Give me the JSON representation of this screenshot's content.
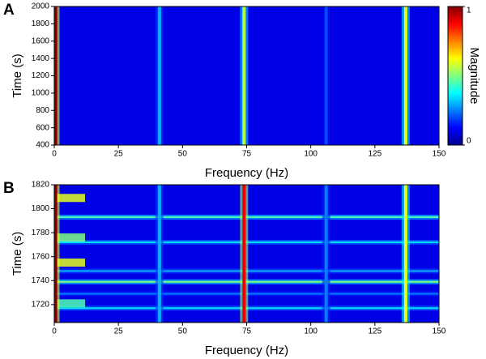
{
  "chart_data": [
    {
      "type": "heatmap",
      "panel": "A",
      "x_label": "Frequency (Hz)",
      "y_label": "Time (s)",
      "xlim": [
        0,
        150
      ],
      "xticks": [
        0,
        25,
        50,
        75,
        100,
        125,
        150
      ],
      "ylim": [
        400,
        2000
      ],
      "yticks": [
        400,
        600,
        800,
        1000,
        1200,
        1400,
        1600,
        1800,
        2000
      ],
      "background_magnitude": 0.1,
      "lines": [
        {
          "frequency": 0.5,
          "magnitude": 1
        },
        {
          "frequency": 41,
          "magnitude": 0.3
        },
        {
          "frequency": 74,
          "magnitude": 0.55
        },
        {
          "frequency": 106,
          "magnitude": 0.2
        },
        {
          "frequency": 137,
          "magnitude": 0.6
        }
      ],
      "bands": [],
      "bursts": [],
      "colorbar": {
        "label": "Magnitude",
        "clim": [
          0,
          1
        ],
        "ticks": [
          0,
          1
        ]
      }
    },
    {
      "type": "heatmap",
      "panel": "B",
      "x_label": "Frequency (Hz)",
      "y_label": "Time (s)",
      "xlim": [
        0,
        150
      ],
      "xticks": [
        0,
        25,
        50,
        75,
        100,
        125,
        150
      ],
      "ylim": [
        1705,
        1820
      ],
      "yticks": [
        1720,
        1740,
        1760,
        1780,
        1800,
        1820
      ],
      "background_magnitude": 0.1,
      "lines": [
        {
          "frequency": 0.5,
          "magnitude": 1
        },
        {
          "frequency": 41,
          "magnitude": 0.3
        },
        {
          "frequency": 74,
          "magnitude": 0.9
        },
        {
          "frequency": 106,
          "magnitude": 0.25
        },
        {
          "frequency": 137,
          "magnitude": 0.6
        }
      ],
      "bands": [
        {
          "time": 1793,
          "magnitude": 0.45
        },
        {
          "time": 1772,
          "magnitude": 0.35
        },
        {
          "time": 1748,
          "magnitude": 0.3
        },
        {
          "time": 1739,
          "magnitude": 0.5
        },
        {
          "time": 1729,
          "magnitude": 0.25
        },
        {
          "time": 1717,
          "magnitude": 0.35
        }
      ],
      "bursts": [
        {
          "time": 1809,
          "magnitude": 0.6
        },
        {
          "time": 1776,
          "magnitude": 0.5
        },
        {
          "time": 1755,
          "magnitude": 0.6
        },
        {
          "time": 1721,
          "magnitude": 0.45
        }
      ]
    }
  ]
}
